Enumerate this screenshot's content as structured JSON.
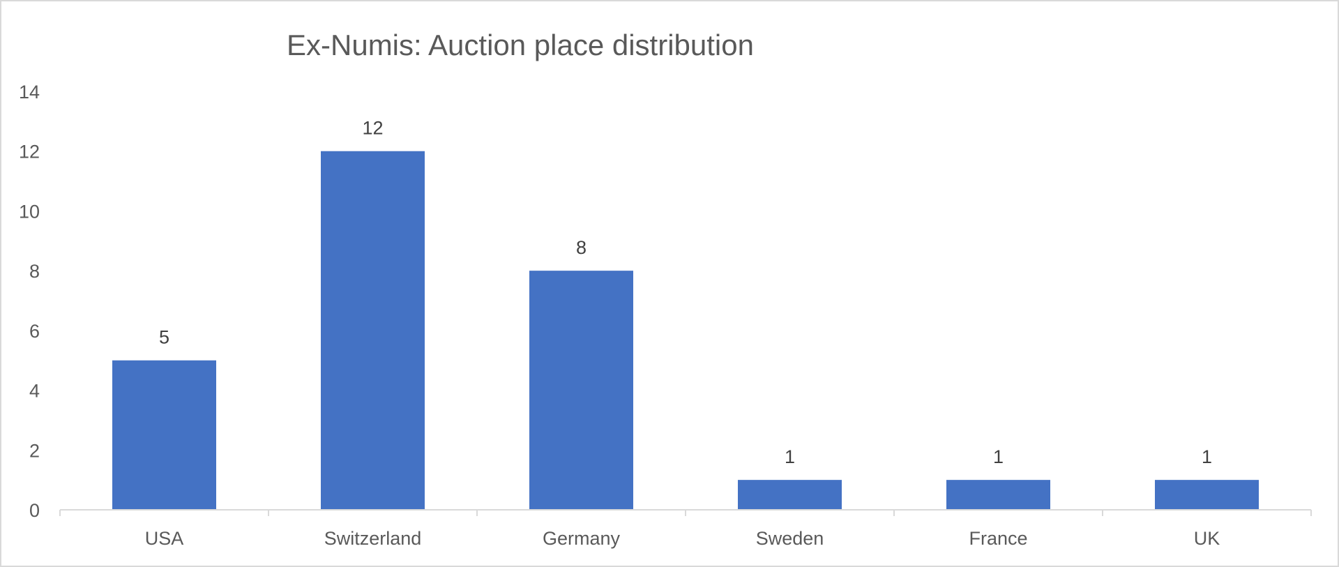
{
  "chart_data": {
    "type": "bar",
    "title": "Ex-Numis: Auction place distribution",
    "categories": [
      "USA",
      "Switzerland",
      "Germany",
      "Sweden",
      "France",
      "UK"
    ],
    "values": [
      5,
      12,
      8,
      1,
      1,
      1
    ],
    "data_labels": [
      "5",
      "12",
      "8",
      "1",
      "1",
      "1"
    ],
    "ylim": [
      0,
      14
    ],
    "yticks": [
      0,
      2,
      4,
      6,
      8,
      10,
      12,
      14
    ],
    "ytick_labels": [
      "0",
      "2",
      "4",
      "6",
      "8",
      "10",
      "12",
      "14"
    ],
    "grid": false,
    "legend": "none",
    "bar_color": "#4472C4",
    "axis_color": "#d9d9d9",
    "text_color": "#595959"
  }
}
